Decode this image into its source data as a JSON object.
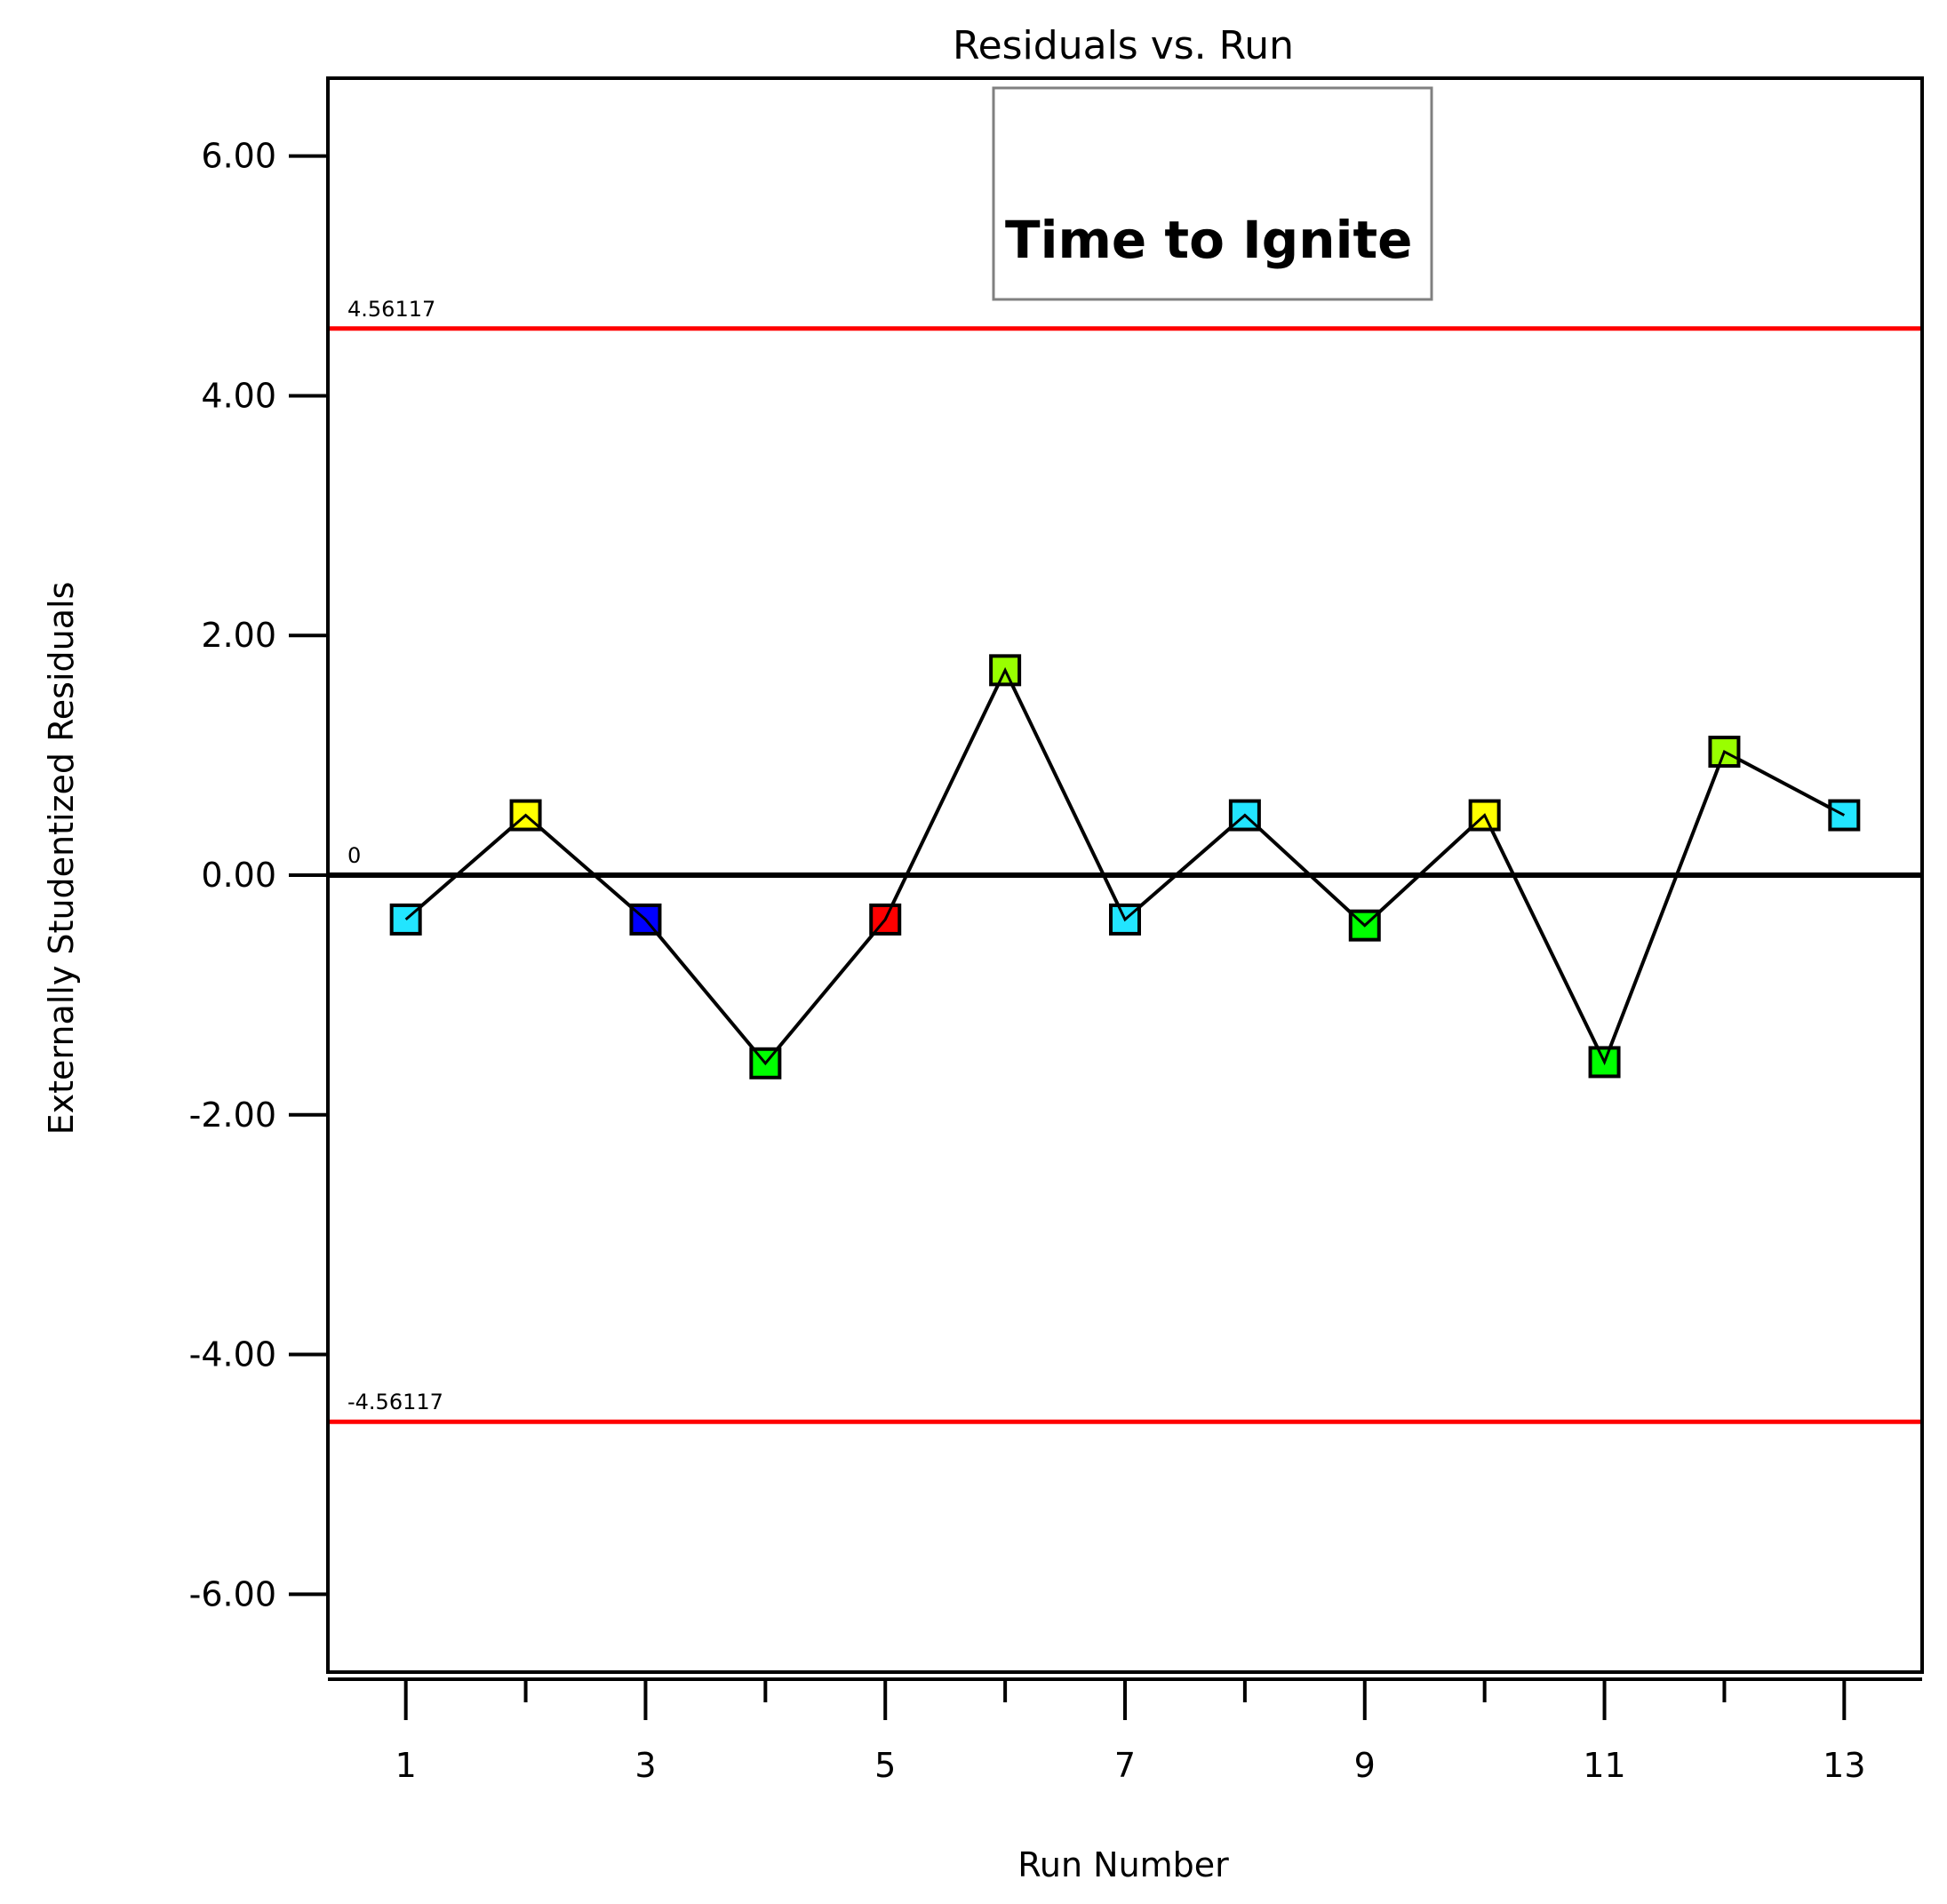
{
  "chart_data": {
    "type": "scatter",
    "title": "Residuals vs. Run",
    "xlabel": "Run Number",
    "ylabel": "Externally Studentized Residuals",
    "xlim": [
      0.35,
      13.65
    ],
    "ylim": [
      -6.65,
      6.65
    ],
    "x_ticks": [
      1,
      2,
      3,
      4,
      5,
      6,
      7,
      8,
      9,
      10,
      11,
      12,
      13
    ],
    "x_tick_labels": [
      "1",
      "",
      "3",
      "",
      "5",
      "",
      "7",
      "",
      "9",
      "",
      "11",
      "",
      "13"
    ],
    "y_ticks": [
      6,
      4,
      2,
      0,
      -2,
      -4,
      -6
    ],
    "y_tick_labels": [
      "6.00",
      "4.00",
      "2.00",
      "0.00",
      "-2.00",
      "-4.00",
      "-6.00"
    ],
    "reference_lines": [
      {
        "label": "4.56117",
        "value": 4.56117,
        "color": "#ff0000"
      },
      {
        "label": "0",
        "value": 0,
        "color": "#000000"
      },
      {
        "label": "-4.56117",
        "value": -4.56117,
        "color": "#ff0000"
      }
    ],
    "series": [
      {
        "connected": true,
        "marker": "square",
        "line_color": "#000000",
        "x": [
          1,
          2,
          3,
          4,
          5,
          6,
          7,
          8,
          9,
          10,
          11,
          12,
          13
        ],
        "y": [
          -0.37,
          0.5,
          -0.37,
          -1.57,
          -0.37,
          1.71,
          -0.37,
          0.5,
          -0.42,
          0.5,
          -1.56,
          1.03,
          0.5
        ],
        "colors": [
          "#22e5ff",
          "#ffff00",
          "#0000ff",
          "#00ff00",
          "#ff0000",
          "#99ff00",
          "#22e5ff",
          "#22e5ff",
          "#00ff00",
          "#ffff00",
          "#00ff00",
          "#99ff00",
          "#22e5ff"
        ]
      }
    ],
    "legend": {
      "text": "Time to Ignite",
      "placement": "top-center"
    },
    "grid": false
  }
}
